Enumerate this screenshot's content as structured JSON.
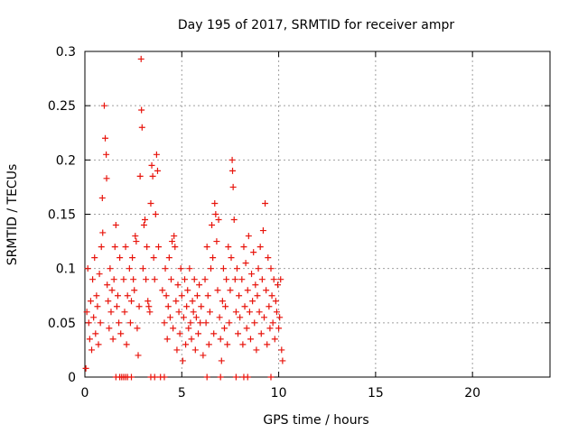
{
  "chart_data": {
    "type": "scatter",
    "title": "Day 195 of 2017, SRMTID for receiver ampr",
    "xlabel": "GPS time / hours",
    "ylabel": "SRMTID / TECUs",
    "xlim": [
      0,
      24
    ],
    "ylim": [
      0,
      0.3
    ],
    "x_ticks": [
      0,
      5,
      10,
      15,
      20
    ],
    "x_tick_labels": [
      "0",
      "5",
      "10",
      "15",
      "20"
    ],
    "y_ticks": [
      0,
      0.05,
      0.1,
      0.15,
      0.2,
      0.25,
      0.3
    ],
    "y_tick_labels": [
      "0",
      "0.05",
      "0.1",
      "0.15",
      "0.2",
      "0.25",
      "0.3"
    ],
    "grid": true,
    "marker": "plus",
    "color": "#e8150d",
    "series": [
      {
        "points": [
          [
            0.05,
            0.008
          ],
          [
            0.1,
            0.06
          ],
          [
            0.15,
            0.1
          ],
          [
            0.2,
            0.05
          ],
          [
            0.25,
            0.035
          ],
          [
            0.3,
            0.07
          ],
          [
            0.35,
            0.025
          ],
          [
            0.4,
            0.09
          ],
          [
            0.45,
            0.055
          ],
          [
            0.5,
            0.11
          ],
          [
            0.55,
            0.04
          ],
          [
            0.6,
            0.075
          ],
          [
            0.65,
            0.065
          ],
          [
            0.7,
            0.03
          ],
          [
            0.75,
            0.095
          ],
          [
            0.8,
            0.05
          ],
          [
            0.85,
            0.12
          ],
          [
            0.9,
            0.165
          ],
          [
            0.92,
            0.133
          ],
          [
            1.0,
            0.25
          ],
          [
            1.05,
            0.22
          ],
          [
            1.1,
            0.205
          ],
          [
            1.12,
            0.183
          ],
          [
            1.15,
            0.085
          ],
          [
            1.2,
            0.07
          ],
          [
            1.25,
            0.045
          ],
          [
            1.3,
            0.1
          ],
          [
            1.35,
            0.06
          ],
          [
            1.4,
            0.08
          ],
          [
            1.45,
            0.035
          ],
          [
            1.5,
            0.09
          ],
          [
            1.55,
            0.12
          ],
          [
            1.6,
            0.14
          ],
          [
            1.65,
            0.065
          ],
          [
            1.7,
            0.075
          ],
          [
            1.75,
            0.05
          ],
          [
            1.8,
            0.11
          ],
          [
            1.85,
            0.04
          ],
          [
            2.0,
            0.09
          ],
          [
            2.05,
            0.06
          ],
          [
            2.1,
            0.12
          ],
          [
            2.15,
            0.03
          ],
          [
            2.2,
            0.075
          ],
          [
            2.3,
            0.1
          ],
          [
            2.35,
            0.05
          ],
          [
            2.4,
            0.07
          ],
          [
            2.45,
            0.11
          ],
          [
            2.5,
            0.09
          ],
          [
            2.55,
            0.08
          ],
          [
            2.6,
            0.13
          ],
          [
            2.65,
            0.125
          ],
          [
            2.7,
            0.045
          ],
          [
            2.75,
            0.02
          ],
          [
            2.8,
            0.065
          ],
          [
            2.85,
            0.185
          ],
          [
            2.9,
            0.293
          ],
          [
            2.92,
            0.246
          ],
          [
            2.95,
            0.23
          ],
          [
            3.0,
            0.1
          ],
          [
            3.05,
            0.14
          ],
          [
            3.1,
            0.145
          ],
          [
            3.15,
            0.09
          ],
          [
            3.2,
            0.12
          ],
          [
            3.25,
            0.07
          ],
          [
            3.3,
            0.065
          ],
          [
            3.35,
            0.06
          ],
          [
            3.4,
            0.16
          ],
          [
            3.45,
            0.195
          ],
          [
            3.5,
            0.185
          ],
          [
            3.55,
            0.11
          ],
          [
            3.6,
            0.09
          ],
          [
            3.65,
            0.15
          ],
          [
            3.7,
            0.205
          ],
          [
            3.75,
            0.19
          ],
          [
            3.8,
            0.12
          ],
          [
            4.0,
            0.08
          ],
          [
            4.1,
            0.05
          ],
          [
            4.15,
            0.1
          ],
          [
            4.2,
            0.075
          ],
          [
            4.25,
            0.035
          ],
          [
            4.3,
            0.065
          ],
          [
            4.35,
            0.11
          ],
          [
            4.4,
            0.055
          ],
          [
            4.45,
            0.09
          ],
          [
            4.5,
            0.125
          ],
          [
            4.55,
            0.045
          ],
          [
            4.6,
            0.13
          ],
          [
            4.65,
            0.12
          ],
          [
            4.7,
            0.07
          ],
          [
            4.75,
            0.025
          ],
          [
            4.8,
            0.085
          ],
          [
            4.85,
            0.06
          ],
          [
            4.9,
            0.04
          ],
          [
            4.95,
            0.1
          ],
          [
            5.0,
            0.075
          ],
          [
            5.05,
            0.015
          ],
          [
            5.1,
            0.055
          ],
          [
            5.15,
            0.09
          ],
          [
            5.2,
            0.03
          ],
          [
            5.25,
            0.065
          ],
          [
            5.3,
            0.08
          ],
          [
            5.35,
            0.045
          ],
          [
            5.4,
            0.1
          ],
          [
            5.45,
            0.05
          ],
          [
            5.5,
            0.035
          ],
          [
            5.55,
            0.07
          ],
          [
            5.6,
            0.06
          ],
          [
            5.65,
            0.09
          ],
          [
            5.7,
            0.025
          ],
          [
            5.75,
            0.055
          ],
          [
            5.8,
            0.075
          ],
          [
            5.85,
            0.04
          ],
          [
            5.9,
            0.085
          ],
          [
            5.95,
            0.05
          ],
          [
            6.0,
            0.065
          ],
          [
            6.1,
            0.02
          ],
          [
            6.2,
            0.09
          ],
          [
            6.25,
            0.05
          ],
          [
            6.3,
            0.12
          ],
          [
            6.35,
            0.075
          ],
          [
            6.4,
            0.03
          ],
          [
            6.45,
            0.06
          ],
          [
            6.5,
            0.1
          ],
          [
            6.55,
            0.14
          ],
          [
            6.6,
            0.11
          ],
          [
            6.65,
            0.04
          ],
          [
            6.7,
            0.16
          ],
          [
            6.75,
            0.15
          ],
          [
            6.8,
            0.125
          ],
          [
            6.85,
            0.08
          ],
          [
            6.9,
            0.145
          ],
          [
            6.95,
            0.055
          ],
          [
            7.0,
            0.035
          ],
          [
            7.05,
            0.015
          ],
          [
            7.1,
            0.07
          ],
          [
            7.15,
            0.1
          ],
          [
            7.2,
            0.045
          ],
          [
            7.25,
            0.065
          ],
          [
            7.3,
            0.09
          ],
          [
            7.35,
            0.03
          ],
          [
            7.4,
            0.12
          ],
          [
            7.45,
            0.05
          ],
          [
            7.5,
            0.08
          ],
          [
            7.55,
            0.11
          ],
          [
            7.6,
            0.2
          ],
          [
            7.62,
            0.19
          ],
          [
            7.65,
            0.175
          ],
          [
            7.7,
            0.145
          ],
          [
            7.75,
            0.09
          ],
          [
            7.8,
            0.06
          ],
          [
            7.85,
            0.1
          ],
          [
            7.9,
            0.04
          ],
          [
            7.95,
            0.075
          ],
          [
            8.0,
            0.055
          ],
          [
            8.1,
            0.09
          ],
          [
            8.15,
            0.03
          ],
          [
            8.2,
            0.12
          ],
          [
            8.25,
            0.065
          ],
          [
            8.3,
            0.105
          ],
          [
            8.35,
            0.045
          ],
          [
            8.4,
            0.08
          ],
          [
            8.45,
            0.13
          ],
          [
            8.5,
            0.06
          ],
          [
            8.55,
            0.035
          ],
          [
            8.6,
            0.095
          ],
          [
            8.65,
            0.07
          ],
          [
            8.7,
            0.115
          ],
          [
            8.75,
            0.05
          ],
          [
            8.8,
            0.085
          ],
          [
            8.85,
            0.025
          ],
          [
            8.9,
            0.075
          ],
          [
            8.95,
            0.1
          ],
          [
            9.0,
            0.06
          ],
          [
            9.05,
            0.12
          ],
          [
            9.1,
            0.04
          ],
          [
            9.15,
            0.09
          ],
          [
            9.2,
            0.135
          ],
          [
            9.25,
            0.055
          ],
          [
            9.3,
            0.16
          ],
          [
            9.35,
            0.08
          ],
          [
            9.4,
            0.03
          ],
          [
            9.45,
            0.11
          ],
          [
            9.5,
            0.065
          ],
          [
            9.55,
            0.045
          ],
          [
            9.6,
            0.1
          ],
          [
            9.65,
            0.075
          ],
          [
            9.7,
            0.05
          ],
          [
            9.75,
            0.09
          ],
          [
            9.8,
            0.035
          ],
          [
            9.85,
            0.07
          ],
          [
            9.9,
            0.06
          ],
          [
            9.95,
            0.085
          ],
          [
            10.0,
            0.045
          ],
          [
            10.05,
            0.055
          ],
          [
            10.1,
            0.09
          ],
          [
            10.15,
            0.025
          ],
          [
            10.2,
            0.015
          ],
          [
            1.6,
            0.0
          ],
          [
            1.8,
            0.0
          ],
          [
            1.9,
            0.0
          ],
          [
            2.0,
            0.0
          ],
          [
            2.1,
            0.0
          ],
          [
            2.2,
            0.0
          ],
          [
            2.4,
            0.0
          ],
          [
            3.4,
            0.0
          ],
          [
            3.6,
            0.0
          ],
          [
            3.9,
            0.0
          ],
          [
            4.1,
            0.0
          ],
          [
            6.3,
            0.0
          ],
          [
            7.0,
            0.0
          ],
          [
            7.8,
            0.0
          ],
          [
            8.2,
            0.0
          ],
          [
            8.4,
            0.0
          ],
          [
            9.6,
            0.0
          ]
        ]
      }
    ]
  }
}
